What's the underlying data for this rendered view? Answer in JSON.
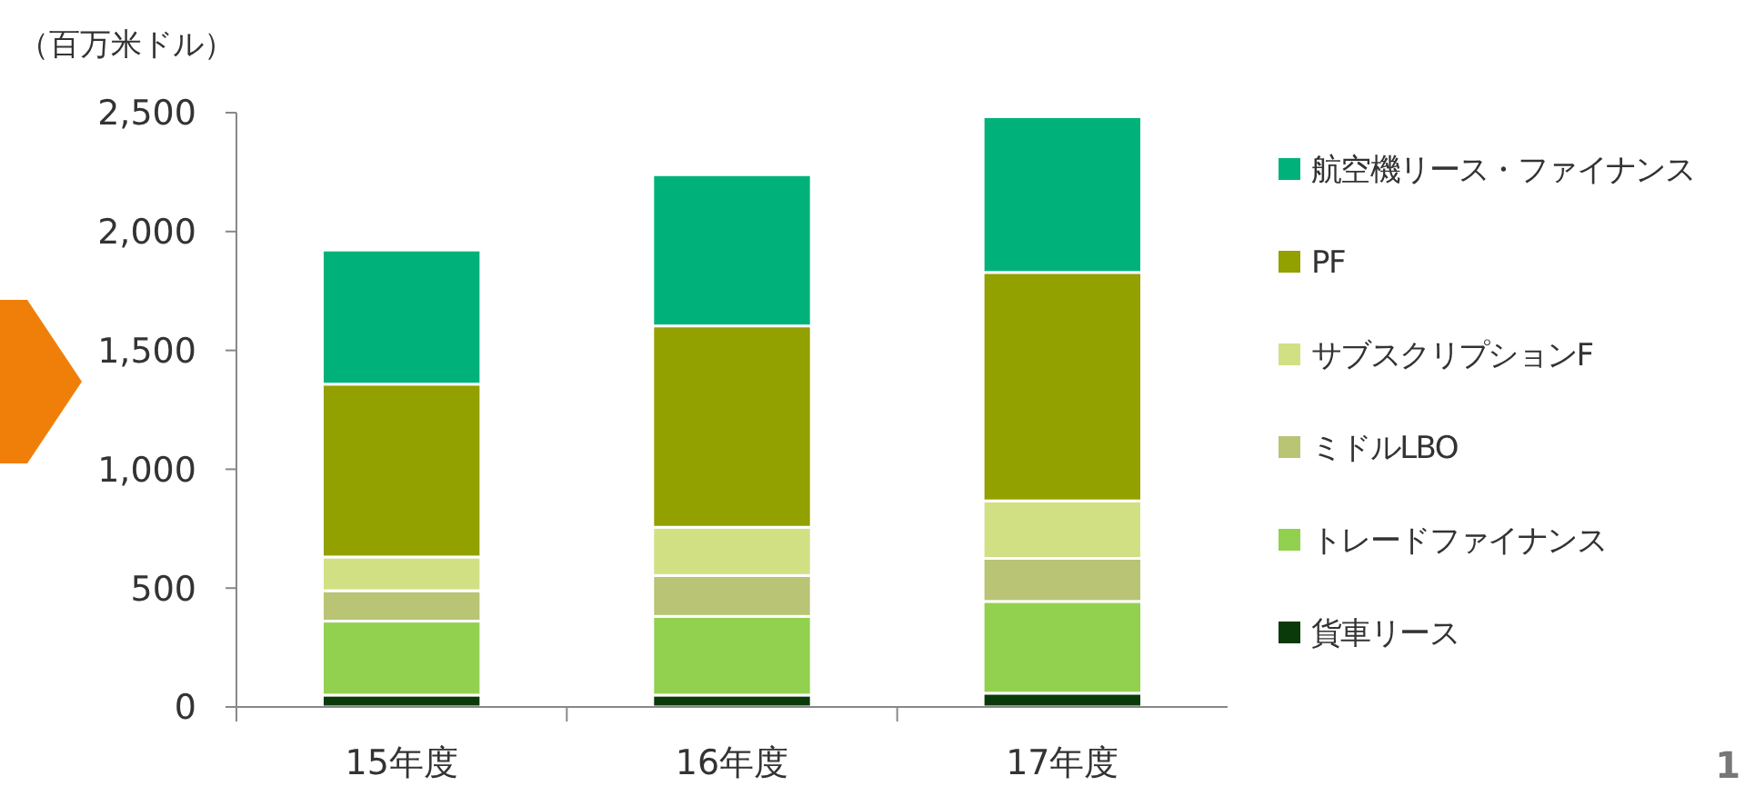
{
  "chart_data": {
    "type": "bar",
    "stacked": true,
    "ylabel": "（百万米ドル）",
    "categories": [
      "15年度",
      "16年度",
      "17年度"
    ],
    "series": [
      {
        "name": "貨車リース",
        "color": "#0a3a0a",
        "values": [
          50,
          50,
          58
        ]
      },
      {
        "name": "トレードファイナンス",
        "color": "#92d050",
        "values": [
          311,
          331,
          386
        ]
      },
      {
        "name": "ミドルLBO",
        "color": "#b9c474",
        "values": [
          128,
          172,
          181
        ]
      },
      {
        "name": "サブスクリプションF",
        "color": "#d2e084",
        "values": [
          142,
          203,
          242
        ]
      },
      {
        "name": "PF",
        "color": "#92a000",
        "values": [
          727,
          847,
          961
        ]
      },
      {
        "name": "航空機リース・ファイナンス",
        "color": "#00b27a",
        "values": [
          564,
          636,
          655
        ]
      }
    ],
    "ylim": [
      0,
      2500
    ],
    "yticks": [
      {
        "value": 0,
        "label": "0"
      },
      {
        "value": 500,
        "label": "500"
      },
      {
        "value": 1000,
        "label": "1,000"
      },
      {
        "value": 1500,
        "label": "1,500"
      },
      {
        "value": 2000,
        "label": "2,000"
      },
      {
        "value": 2500,
        "label": "2,500"
      }
    ],
    "grid": false,
    "legend": "right",
    "annotations": [
      "1"
    ]
  }
}
